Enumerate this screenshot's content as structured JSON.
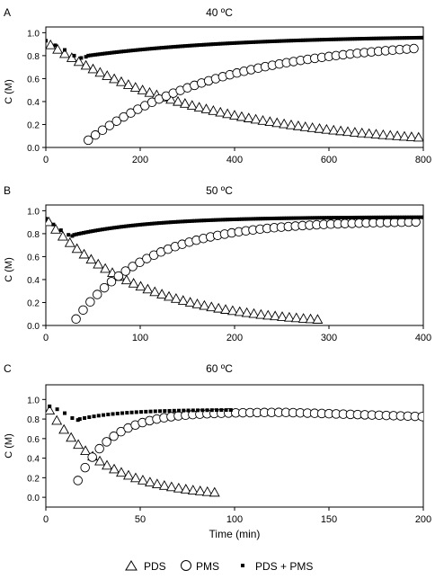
{
  "x_axis_label": "Time (min)",
  "y_axis_label": "C (M)",
  "legend": [
    {
      "marker": "triangle-open",
      "label": "PDS"
    },
    {
      "marker": "circle-open",
      "label": "PMS"
    },
    {
      "marker": "square-filled",
      "label": "PDS + PMS"
    }
  ],
  "chart_data": [
    {
      "type": "scatter",
      "panel_label": "A",
      "title": "40 ºC",
      "xlabel": "",
      "ylabel": "C (M)",
      "xlim": [
        0,
        800
      ],
      "ylim": [
        0,
        1.05
      ],
      "xticks": [
        0,
        200,
        400,
        600,
        800
      ],
      "yticks": [
        0.0,
        0.2,
        0.4,
        0.6,
        0.8,
        1.0
      ],
      "series": [
        {
          "name": "PDS",
          "marker": "triangle-open",
          "x_start": 10,
          "x_step": 15,
          "x_end": 790,
          "curve": {
            "kind": "decay",
            "A": 0.92,
            "k": 0.002975,
            "x_offset": 0,
            "floor": 0
          }
        },
        {
          "name": "PMS",
          "marker": "circle-open",
          "x_start": 90,
          "x_step": 15,
          "x_end": 790,
          "curve": {
            "kind": "rise",
            "A": 0.94,
            "k": 0.0035,
            "x_offset": 70,
            "floor": 0
          }
        },
        {
          "name": "PDS + PMS",
          "marker": "square-filled",
          "x_start": 0,
          "x_step": 5,
          "x_end": 800,
          "points_head": [
            [
              0,
              0.93
            ],
            [
              20,
              0.89
            ],
            [
              40,
              0.85
            ],
            [
              60,
              0.8
            ],
            [
              75,
              0.78
            ],
            [
              85,
              0.79
            ]
          ],
          "curve_after": 90,
          "curve": {
            "kind": "approach",
            "start": 0.8,
            "end": 0.975,
            "k": 0.0032,
            "x_offset": 90
          }
        }
      ]
    },
    {
      "type": "scatter",
      "panel_label": "B",
      "title": "50 ºC",
      "xlabel": "",
      "ylabel": "C (M)",
      "xlim": [
        0,
        400
      ],
      "ylim": [
        0,
        1.05
      ],
      "xticks": [
        0,
        100,
        200,
        300,
        400
      ],
      "yticks": [
        0.0,
        0.2,
        0.4,
        0.6,
        0.8,
        1.0
      ],
      "series": [
        {
          "name": "PDS",
          "marker": "triangle-open",
          "x_start": 3,
          "x_step": 7.5,
          "x_end": 290,
          "curve": {
            "kind": "decay",
            "A": 0.93,
            "k": 0.01,
            "x_offset": 0,
            "floor": 0
          }
        },
        {
          "name": "PMS",
          "marker": "circle-open",
          "x_start": 32,
          "x_step": 7.5,
          "x_end": 398,
          "curve": {
            "kind": "rise",
            "A": 0.91,
            "k": 0.0128,
            "x_offset": 27,
            "floor": 0
          }
        },
        {
          "name": "PDS + PMS",
          "marker": "square-filled",
          "x_start": 0,
          "x_step": 2.5,
          "x_end": 400,
          "points_head": [
            [
              0,
              0.93
            ],
            [
              8,
              0.88
            ],
            [
              16,
              0.83
            ],
            [
              24,
              0.79
            ],
            [
              28,
              0.78
            ]
          ],
          "curve_after": 30,
          "curve": {
            "kind": "approach",
            "start": 0.79,
            "end": 0.945,
            "k": 0.012,
            "x_offset": 30
          }
        }
      ]
    },
    {
      "type": "scatter",
      "panel_label": "C",
      "title": "60 ºC",
      "xlabel": "Time (min)",
      "ylabel": "C (M)",
      "xlim": [
        0,
        200
      ],
      "ylim": [
        -0.1,
        1.15
      ],
      "xticks": [
        0,
        50,
        100,
        150,
        200
      ],
      "yticks": [
        0.0,
        0.2,
        0.4,
        0.6,
        0.8,
        1.0
      ],
      "series": [
        {
          "name": "PDS",
          "marker": "triangle-open",
          "x_start": 2,
          "x_step": 3.8,
          "x_end": 92,
          "curve": {
            "kind": "decay",
            "A": 0.95,
            "k": 0.033,
            "x_offset": 0,
            "floor": 0
          }
        },
        {
          "name": "PMS",
          "marker": "circle-open",
          "x_start": 17,
          "x_step": 3.8,
          "x_end": 200,
          "curve": {
            "kind": "rise-then-fall",
            "A": 0.87,
            "k": 0.055,
            "x_offset": 13,
            "drop_start": 125,
            "drop_rate": 0.0006
          }
        },
        {
          "name": "PDS + PMS",
          "marker": "square-filled",
          "x_start": 2,
          "x_step": 2.5,
          "x_end": 98,
          "points_head": [
            [
              2,
              0.93
            ],
            [
              6,
              0.9
            ],
            [
              10,
              0.86
            ],
            [
              14,
              0.81
            ],
            [
              17,
              0.79
            ]
          ],
          "curve_after": 18,
          "curve": {
            "kind": "approach",
            "start": 0.8,
            "end": 0.895,
            "k": 0.045,
            "x_offset": 18
          }
        }
      ]
    }
  ]
}
